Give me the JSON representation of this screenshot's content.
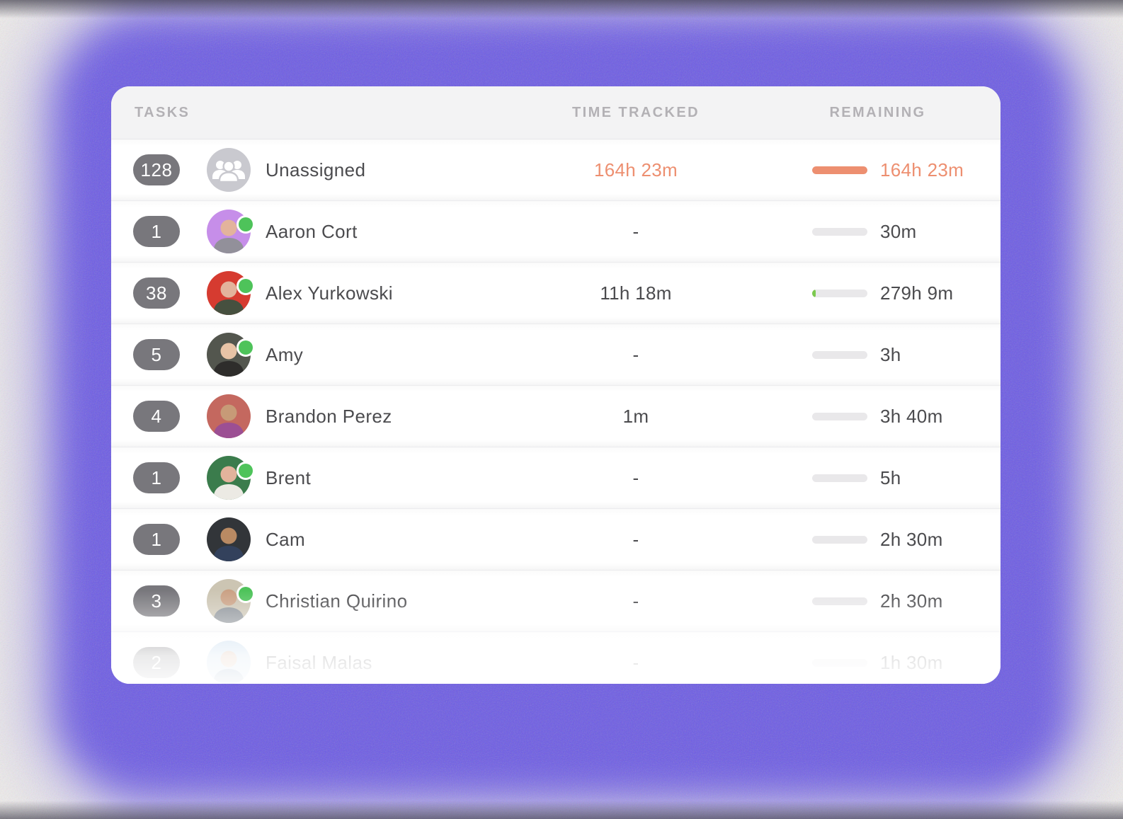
{
  "table": {
    "header": {
      "tasks": "TASKS",
      "time_tracked": "TIME TRACKED",
      "remaining": "REMAINING"
    },
    "rows": [
      {
        "count": "128",
        "name": "Unassigned",
        "tracked": "164h 23m",
        "remaining": "164h 23m",
        "accent": true,
        "online": false,
        "avatar": {
          "type": "group",
          "bg": "#c9c9cf"
        },
        "bar": {
          "percent": 100,
          "color": "#ed8f70"
        }
      },
      {
        "count": "1",
        "name": "Aaron Cort",
        "tracked": "-",
        "remaining": "30m",
        "accent": false,
        "online": true,
        "avatar": {
          "type": "person",
          "bg": "#c68ee9",
          "skin": "#e3b39c",
          "shirt": "#92909a"
        },
        "bar": {
          "percent": 0,
          "color": "#7cc94f"
        }
      },
      {
        "count": "38",
        "name": "Alex Yurkowski",
        "tracked": "11h 18m",
        "remaining": "279h 9m",
        "accent": false,
        "online": true,
        "avatar": {
          "type": "person",
          "bg": "#d63b30",
          "skin": "#e3b39c",
          "shirt": "#46503f"
        },
        "bar": {
          "percent": 6,
          "color": "#7cc94f"
        }
      },
      {
        "count": "5",
        "name": "Amy",
        "tracked": "-",
        "remaining": "3h",
        "accent": false,
        "online": true,
        "avatar": {
          "type": "person",
          "bg": "#53564e",
          "skin": "#e8c3a6",
          "shirt": "#2e2d2b"
        },
        "bar": {
          "percent": 0,
          "color": "#7cc94f"
        }
      },
      {
        "count": "4",
        "name": "Brandon Perez",
        "tracked": "1m",
        "remaining": "3h 40m",
        "accent": false,
        "online": false,
        "avatar": {
          "type": "person",
          "bg": "#c4685f",
          "skin": "#c79a77",
          "shirt": "#9c4f93"
        },
        "bar": {
          "percent": 0,
          "color": "#7cc94f"
        }
      },
      {
        "count": "1",
        "name": "Brent",
        "tracked": "-",
        "remaining": "5h",
        "accent": false,
        "online": true,
        "avatar": {
          "type": "person",
          "bg": "#3b7c4c",
          "skin": "#e3b39c",
          "shirt": "#eceae4"
        },
        "bar": {
          "percent": 0,
          "color": "#7cc94f"
        }
      },
      {
        "count": "1",
        "name": "Cam",
        "tracked": "-",
        "remaining": "2h 30m",
        "accent": false,
        "online": false,
        "avatar": {
          "type": "person",
          "bg": "#323539",
          "skin": "#b98a63",
          "shirt": "#33415c"
        },
        "bar": {
          "percent": 0,
          "color": "#7cc94f"
        }
      },
      {
        "count": "3",
        "name": "Christian Quirino",
        "tracked": "-",
        "remaining": "2h 30m",
        "accent": false,
        "online": true,
        "avatar": {
          "type": "person",
          "bg": "#ccc5b3",
          "skin": "#caa184",
          "shirt": "#8a9096"
        },
        "bar": {
          "percent": 0,
          "color": "#7cc94f"
        }
      },
      {
        "count": "2",
        "name": "Faisal Malas",
        "tracked": "-",
        "remaining": "1h 30m",
        "accent": false,
        "online": false,
        "avatar": {
          "type": "person",
          "bg": "#c2d9ed",
          "skin": "#d8b298",
          "shirt": "#5c7fa6"
        },
        "bar": {
          "percent": 0,
          "color": "#7cc94f"
        }
      }
    ]
  },
  "colors": {
    "accent_orange": "#ed8f70",
    "bar_track": "#e9e8ea",
    "bar_green": "#7cc94f",
    "online_green": "#4ec35a",
    "pill_gray": "#78777c",
    "background_purple": "#6d5ce4"
  }
}
